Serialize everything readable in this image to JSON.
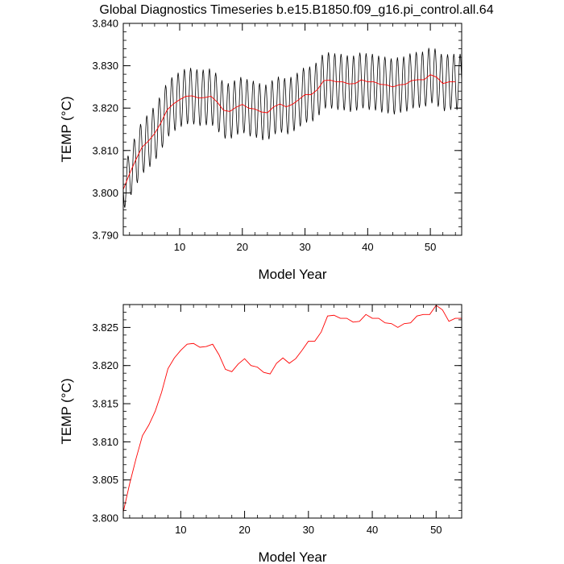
{
  "page_title": "Global Diagnostics Timeseries b.e15.B1850.f09_g16.pi_control.all.64",
  "colors": {
    "monthly_line": "#000000",
    "annual_line": "#ff0000",
    "axes": "#000000",
    "background": "#ffffff"
  },
  "chart_data": [
    {
      "type": "line",
      "title": "Global Diagnostics Timeseries b.e15.B1850.f09_g16.pi_control.all.64",
      "xlabel": "Model Year",
      "ylabel": "TEMP (°C)",
      "xlim": [
        1,
        55
      ],
      "ylim": [
        3.79,
        3.84
      ],
      "xticks": [
        10,
        20,
        30,
        40,
        50
      ],
      "xtick_labels": [
        "10",
        "20",
        "30",
        "40",
        "50"
      ],
      "yticks": [
        3.79,
        3.8,
        3.81,
        3.82,
        3.83,
        3.84
      ],
      "ytick_labels": [
        "3.790",
        "3.800",
        "3.810",
        "3.820",
        "3.830",
        "3.840"
      ],
      "series": [
        {
          "name": "monthly",
          "kind": "seasonal_monthly",
          "color": "#000000",
          "baseline_series": "annual",
          "values_per_year": 12,
          "seasonal_amplitude": [
            0.0052,
            0.0058,
            0.0062,
            0.0064,
            0.0065,
            0.0066,
            0.0066,
            0.0066,
            0.0066,
            0.0066,
            0.0066,
            0.0066,
            0.0066,
            0.0066,
            0.0066,
            0.0066,
            0.0066,
            0.0066,
            0.0066,
            0.0066,
            0.0066,
            0.0066,
            0.0066,
            0.0066,
            0.0066,
            0.0066,
            0.0066,
            0.0066,
            0.0066,
            0.0066,
            0.0066,
            0.0066,
            0.0066,
            0.0066,
            0.0066,
            0.0066,
            0.0066,
            0.0066,
            0.0066,
            0.0066,
            0.0066,
            0.0066,
            0.0066,
            0.0066,
            0.0066,
            0.0066,
            0.0066,
            0.0066,
            0.0066,
            0.0066,
            0.0066,
            0.0066,
            0.0066,
            0.0066
          ]
        },
        {
          "name": "annual",
          "color": "#ff0000",
          "x": [
            1,
            2,
            3,
            4,
            5,
            6,
            7,
            8,
            9,
            10,
            11,
            12,
            13,
            14,
            15,
            16,
            17,
            18,
            19,
            20,
            21,
            22,
            23,
            24,
            25,
            26,
            27,
            28,
            29,
            30,
            31,
            32,
            33,
            34,
            35,
            36,
            37,
            38,
            39,
            40,
            41,
            42,
            43,
            44,
            45,
            46,
            47,
            48,
            49,
            50,
            51,
            52,
            53,
            54
          ],
          "values": [
            3.8008,
            3.8045,
            3.8078,
            3.8108,
            3.8122,
            3.814,
            3.8165,
            3.8196,
            3.821,
            3.822,
            3.8228,
            3.8229,
            3.8224,
            3.8225,
            3.8228,
            3.8214,
            3.8195,
            3.8192,
            3.8202,
            3.8209,
            3.82,
            3.8198,
            3.8191,
            3.8189,
            3.8203,
            3.821,
            3.8203,
            3.8209,
            3.822,
            3.8232,
            3.8232,
            3.8244,
            3.8265,
            3.8266,
            3.8262,
            3.8262,
            3.8257,
            3.8258,
            3.8267,
            3.8262,
            3.8262,
            3.8256,
            3.8255,
            3.825,
            3.8255,
            3.8256,
            3.8265,
            3.8267,
            3.8267,
            3.8279,
            3.8273,
            3.8258,
            3.8262,
            3.8262
          ]
        }
      ]
    },
    {
      "type": "line",
      "title": "",
      "xlabel": "Model Year",
      "ylabel": "TEMP (°C)",
      "xlim": [
        1,
        54
      ],
      "ylim": [
        3.8,
        3.828
      ],
      "xticks": [
        10,
        20,
        30,
        40,
        50
      ],
      "xtick_labels": [
        "10",
        "20",
        "30",
        "40",
        "50"
      ],
      "yticks": [
        3.8,
        3.805,
        3.81,
        3.815,
        3.82,
        3.825
      ],
      "ytick_labels": [
        "3.800",
        "3.805",
        "3.810",
        "3.815",
        "3.820",
        "3.825"
      ],
      "series": [
        {
          "name": "annual",
          "color": "#ff0000",
          "x": [
            1,
            2,
            3,
            4,
            5,
            6,
            7,
            8,
            9,
            10,
            11,
            12,
            13,
            14,
            15,
            16,
            17,
            18,
            19,
            20,
            21,
            22,
            23,
            24,
            25,
            26,
            27,
            28,
            29,
            30,
            31,
            32,
            33,
            34,
            35,
            36,
            37,
            38,
            39,
            40,
            41,
            42,
            43,
            44,
            45,
            46,
            47,
            48,
            49,
            50,
            51,
            52,
            53,
            54
          ],
          "values": [
            3.8008,
            3.8045,
            3.8078,
            3.8108,
            3.8122,
            3.814,
            3.8165,
            3.8196,
            3.821,
            3.822,
            3.8228,
            3.8229,
            3.8224,
            3.8225,
            3.8228,
            3.8214,
            3.8195,
            3.8192,
            3.8202,
            3.8209,
            3.82,
            3.8198,
            3.8191,
            3.8189,
            3.8203,
            3.821,
            3.8203,
            3.8209,
            3.822,
            3.8232,
            3.8232,
            3.8244,
            3.8265,
            3.8266,
            3.8262,
            3.8262,
            3.8257,
            3.8258,
            3.8267,
            3.8262,
            3.8262,
            3.8256,
            3.8255,
            3.825,
            3.8255,
            3.8256,
            3.8265,
            3.8267,
            3.8267,
            3.8279,
            3.8273,
            3.8258,
            3.8262,
            3.8262
          ]
        }
      ]
    }
  ]
}
